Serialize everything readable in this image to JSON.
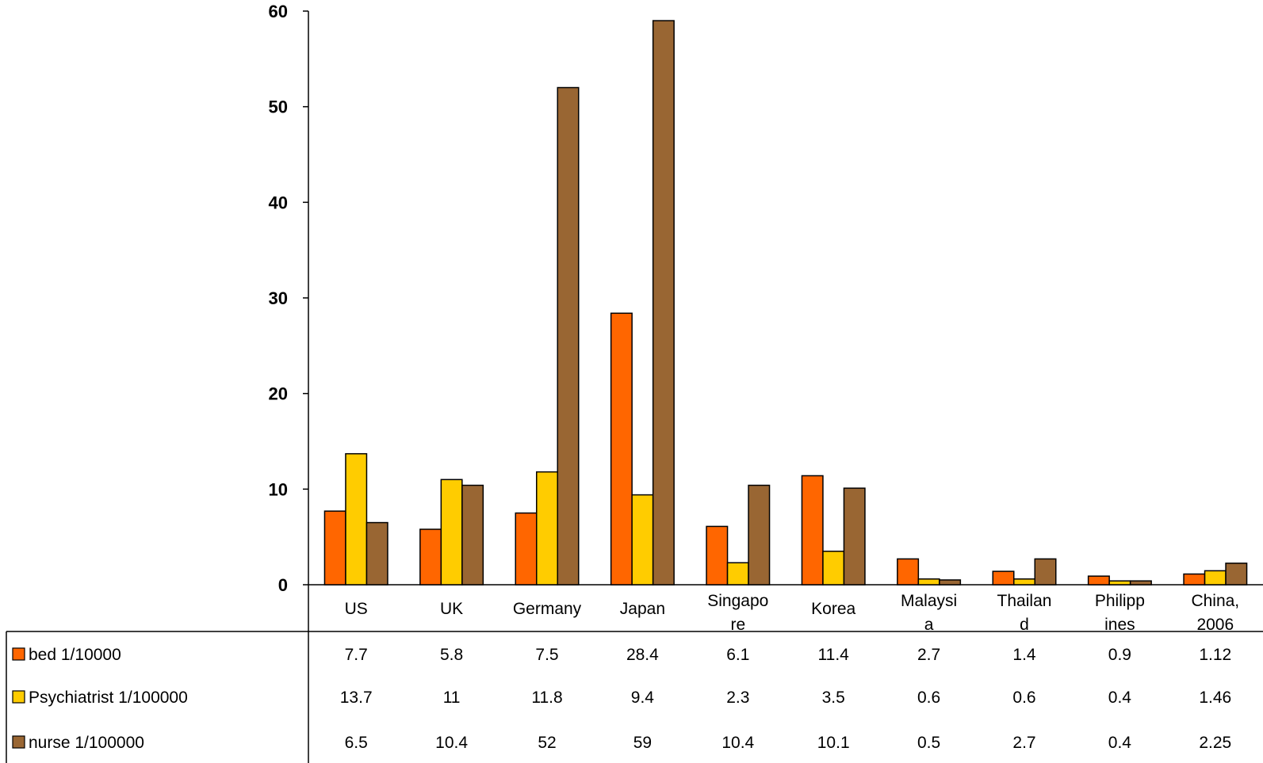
{
  "chart_data": {
    "type": "bar",
    "title": "",
    "xlabel": "",
    "ylabel": "",
    "ylim": [
      0,
      60
    ],
    "yticks": [
      0,
      10,
      20,
      30,
      40,
      50,
      60
    ],
    "grid": false,
    "legend": "table-below",
    "categories": [
      [
        "US"
      ],
      [
        "UK"
      ],
      [
        "Germany"
      ],
      [
        "Japan"
      ],
      [
        "Singapo",
        "re"
      ],
      [
        "Korea"
      ],
      [
        "Malaysi",
        "a"
      ],
      [
        "Thailan",
        "d"
      ],
      [
        "Philipp",
        "ines"
      ],
      [
        "China,",
        "2006"
      ]
    ],
    "series": [
      {
        "name": "bed 1/10000",
        "color": "#FF6600",
        "values": [
          7.7,
          5.8,
          7.5,
          28.4,
          6.1,
          11.4,
          2.7,
          1.4,
          0.9,
          1.12
        ],
        "labels": [
          "7.7",
          "5.8",
          "7.5",
          "28.4",
          "6.1",
          "11.4",
          "2.7",
          "1.4",
          "0.9",
          "1.12"
        ]
      },
      {
        "name": "Psychiatrist 1/100000",
        "color": "#FFCC00",
        "values": [
          13.7,
          11,
          11.8,
          9.4,
          2.3,
          3.5,
          0.6,
          0.6,
          0.4,
          1.46
        ],
        "labels": [
          "13.7",
          "11",
          "11.8",
          "9.4",
          "2.3",
          "3.5",
          "0.6",
          "0.6",
          "0.4",
          "1.46"
        ]
      },
      {
        "name": "nurse 1/100000",
        "color": "#996633",
        "values": [
          6.5,
          10.4,
          52,
          59,
          10.4,
          10.1,
          0.5,
          2.7,
          0.4,
          2.25
        ],
        "labels": [
          "6.5",
          "10.4",
          "52",
          "59",
          "10.4",
          "10.1",
          "0.5",
          "2.7",
          "0.4",
          "2.25"
        ]
      }
    ]
  }
}
